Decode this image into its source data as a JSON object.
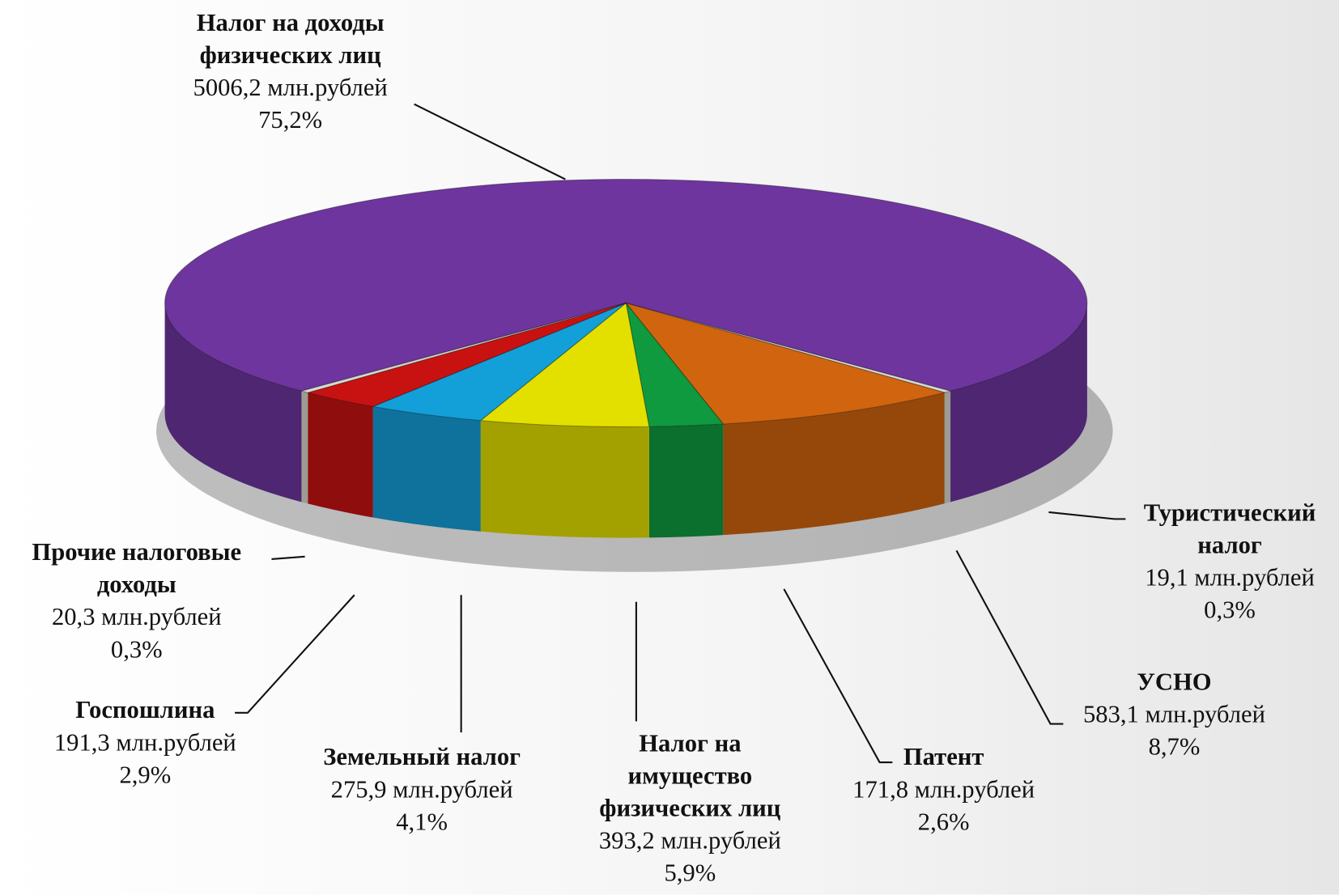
{
  "chart_data": {
    "type": "pie3d",
    "categories": [
      "Налог на доходы физических лиц",
      "Туристический налог",
      "УСНО",
      "Патент",
      "Налог на имущество физических лиц",
      "Земельный налог",
      "Госпошлина",
      "Прочие налоговые доходы"
    ],
    "values": [
      5006.2,
      19.1,
      583.1,
      171.8,
      393.2,
      275.9,
      191.3,
      20.3
    ],
    "value_labels": [
      "5006,2 млн.рублей",
      "19,1 млн.рублей",
      "583,1 млн.рублей",
      "171,8 млн.рублей",
      "393,2 млн.рублей",
      "275,9 млн.рублей",
      "191,3 млн.рублей",
      "20,3 млн.рублей"
    ],
    "percents": [
      75.2,
      0.3,
      8.7,
      2.6,
      5.9,
      4.1,
      2.9,
      0.3
    ],
    "percent_labels": [
      "75,2%",
      "0,3%",
      "8,7%",
      "2,6%",
      "5,9%",
      "4,1%",
      "2,9%",
      "0,3%"
    ],
    "colors": [
      "#6e359e",
      "#d9d9cf",
      "#d0640f",
      "#0f9a40",
      "#e3e000",
      "#139fd8",
      "#c81212",
      "#d9d9cf"
    ]
  }
}
